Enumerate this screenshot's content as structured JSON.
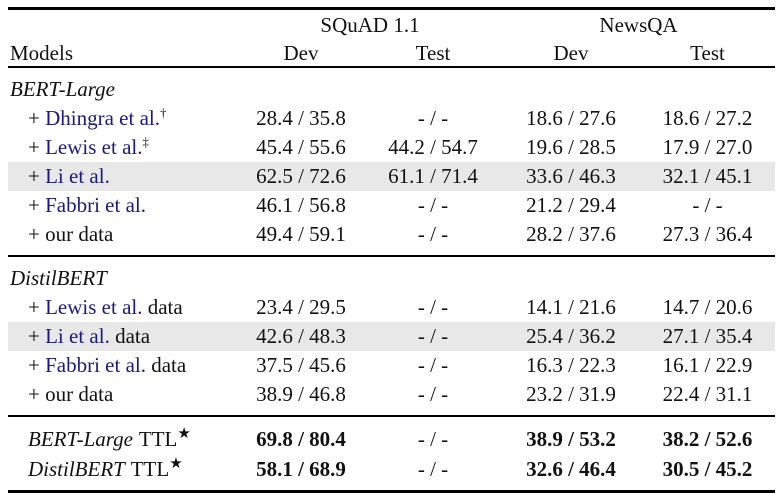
{
  "table": {
    "header": {
      "models_label": "Models",
      "groups": [
        {
          "label": "SQuAD 1.1",
          "subcols": [
            "Dev",
            "Test"
          ]
        },
        {
          "label": "NewsQA",
          "subcols": [
            "Dev",
            "Test"
          ]
        }
      ]
    },
    "colors": {
      "citation": "#1a1a7e",
      "highlight": "#e8e8e8",
      "rule": "#000000",
      "text": "#111111"
    },
    "sections": [
      {
        "title": "BERT-Large",
        "rows": [
          {
            "prefix": "+ ",
            "cite": "Dhingra et al.",
            "sup": "†",
            "suffix": "",
            "values": [
              "28.4 / 35.8",
              "- / -",
              "18.6 / 27.6",
              "18.6 / 27.2"
            ]
          },
          {
            "prefix": "+ ",
            "cite": "Lewis et al.",
            "sup": "‡",
            "suffix": "",
            "values": [
              "45.4 / 55.6",
              "44.2 / 54.7",
              "19.6 / 28.5",
              "17.9 / 27.0"
            ]
          },
          {
            "prefix": "+ ",
            "cite": "Li et al.",
            "sup": "",
            "suffix": "",
            "values": [
              "62.5 / 72.6",
              "61.1 / 71.4",
              "33.6 / 46.3",
              "32.1 / 45.1"
            ]
          },
          {
            "prefix": "+ ",
            "cite": "Fabbri et al.",
            "sup": "",
            "suffix": "",
            "values": [
              "46.1 / 56.8",
              "- / -",
              "21.2 / 29.4",
              "- / -"
            ]
          },
          {
            "prefix": "+ our data",
            "cite": "",
            "sup": "",
            "suffix": "",
            "values": [
              "49.4 / 59.1",
              "- / -",
              "28.2 / 37.6",
              "27.3 / 36.4"
            ]
          }
        ]
      },
      {
        "title": "DistilBERT",
        "rows": [
          {
            "prefix": "+ ",
            "cite": "Lewis et al.",
            "sup": "",
            "suffix": " data",
            "values": [
              "23.4 / 29.5",
              "- / -",
              "14.1 / 21.6",
              "14.7 / 20.6"
            ]
          },
          {
            "prefix": "+ ",
            "cite": "Li et al.",
            "sup": "",
            "suffix": " data",
            "values": [
              "42.6 / 48.3",
              "- / -",
              "25.4 / 36.2",
              "27.1 / 35.4"
            ]
          },
          {
            "prefix": "+ ",
            "cite": "Fabbri et al.",
            "sup": "",
            "suffix": " data",
            "values": [
              "37.5 / 45.6",
              "- / -",
              "16.3 / 22.3",
              "16.1 / 22.9"
            ]
          },
          {
            "prefix": "+ our data",
            "cite": "",
            "sup": "",
            "suffix": "",
            "values": [
              "38.9 / 46.8",
              "- / -",
              "23.2 / 31.9",
              "22.4 / 31.1"
            ]
          }
        ]
      }
    ],
    "footer": [
      {
        "model": "BERT-Large",
        "label": "TTL",
        "sup": "★",
        "values": [
          "69.8 / 80.4",
          "- / -",
          "38.9 / 53.2",
          "38.2 / 52.6"
        ]
      },
      {
        "model": "DistilBERT",
        "label": "TTL",
        "sup": "★",
        "values": [
          "58.1 / 68.9",
          "- / -",
          "32.6 / 46.4",
          "30.5 / 45.2"
        ]
      }
    ]
  }
}
